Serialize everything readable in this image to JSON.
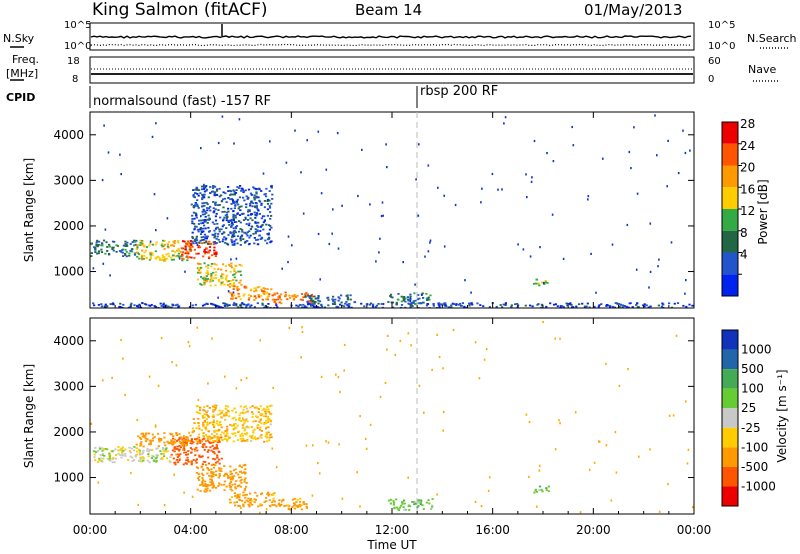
{
  "header": {
    "station": "King Salmon (fitACF)",
    "beam": "Beam 14",
    "date": "01/May/2013"
  },
  "noise_panel": {
    "left_label": "N.Sky",
    "right_label": "N.Search",
    "ticks_left": [
      "10^5",
      "10^0"
    ],
    "ticks_right": [
      "10^5",
      "10^0"
    ]
  },
  "freq_panel": {
    "left_label_1": "Freq.",
    "left_label_2": "[MHz]",
    "ticks_left": [
      "18",
      "8"
    ],
    "right_label": "Nave",
    "ticks_right": [
      "60",
      "0"
    ]
  },
  "cpid": {
    "label": "CPID",
    "segments": [
      {
        "text": "normalsound (fast)  -157 RF",
        "start_hour": 0
      },
      {
        "text": "rbsp 200 RF",
        "start_hour": 13.1
      }
    ]
  },
  "colors": {
    "power_scale": [
      "#0022ee",
      "#2255cc",
      "#226644",
      "#33aa44",
      "#ffcc00",
      "#ff9900",
      "#ff5500",
      "#ee0000"
    ],
    "velocity_scale": [
      "#1133bb",
      "#2266aa",
      "#44aa55",
      "#66cc33",
      "#c8c8c8",
      "#ffcc00",
      "#ff9900",
      "#ff5500",
      "#ee0000"
    ]
  },
  "chart_data": [
    {
      "type": "heatmap",
      "name": "power",
      "xlabel": "",
      "ylabel": "Slant Range [km]",
      "xlim": [
        0,
        24
      ],
      "ylim": [
        200,
        4500
      ],
      "y_ticks": [
        "1000",
        "2000",
        "3000",
        "4000"
      ],
      "colorbar_label": "Power [dB]",
      "colorbar_ticks": [
        "28",
        "24",
        "20",
        "16",
        "12",
        "8",
        "4"
      ],
      "echo_regions": [
        {
          "hours": [
            0.0,
            1.8
          ],
          "range_km": [
            1350,
            1700
          ],
          "power_db": 10
        },
        {
          "hours": [
            1.8,
            4.0
          ],
          "range_km": [
            1250,
            1700
          ],
          "power_db": 18
        },
        {
          "hours": [
            3.6,
            5.0
          ],
          "range_km": [
            1300,
            1700
          ],
          "power_db": 28
        },
        {
          "hours": [
            4.0,
            7.2
          ],
          "range_km": [
            1600,
            2900
          ],
          "power_db": 6
        },
        {
          "hours": [
            4.2,
            6.0
          ],
          "range_km": [
            700,
            1200
          ],
          "power_db": 18
        },
        {
          "hours": [
            5.5,
            7.3
          ],
          "range_km": [
            380,
            700
          ],
          "power_db": 22
        },
        {
          "hours": [
            7.2,
            8.8
          ],
          "range_km": [
            320,
            560
          ],
          "power_db": 24
        },
        {
          "hours": [
            8.5,
            10.5
          ],
          "range_km": [
            250,
            500
          ],
          "power_db": 8
        },
        {
          "hours": [
            11.8,
            13.6
          ],
          "range_km": [
            300,
            550
          ],
          "power_db": 10
        },
        {
          "hours": [
            17.6,
            18.2
          ],
          "range_km": [
            680,
            850
          ],
          "power_db": 16
        },
        {
          "hours": [
            0.0,
            24.0
          ],
          "range_km": [
            220,
            330
          ],
          "power_db": 5
        }
      ]
    },
    {
      "type": "heatmap",
      "name": "velocity",
      "xlabel": "Time UT",
      "ylabel": "Slant Range [km]",
      "xlim": [
        0,
        24
      ],
      "ylim": [
        200,
        4500
      ],
      "x_ticks": [
        "00:00",
        "04:00",
        "08:00",
        "12:00",
        "16:00",
        "20:00",
        "00:00"
      ],
      "y_ticks": [
        "1000",
        "2000",
        "3000",
        "4000"
      ],
      "colorbar_label": "Velocity [m s⁻¹]",
      "colorbar_ticks": [
        "1000",
        "500",
        "100",
        "25",
        "-25",
        "-100",
        "-500",
        "-1000"
      ],
      "echo_regions": [
        {
          "hours": [
            0.0,
            3.2
          ],
          "range_km": [
            1350,
            1700
          ],
          "velocity_ms": 0
        },
        {
          "hours": [
            3.2,
            5.2
          ],
          "range_km": [
            1300,
            1900
          ],
          "velocity_ms": -600
        },
        {
          "hours": [
            1.8,
            4.0
          ],
          "range_km": [
            1700,
            2000
          ],
          "velocity_ms": -400
        },
        {
          "hours": [
            4.0,
            7.2
          ],
          "range_km": [
            1800,
            2600
          ],
          "velocity_ms": -80
        },
        {
          "hours": [
            4.2,
            6.2
          ],
          "range_km": [
            700,
            1300
          ],
          "velocity_ms": -300
        },
        {
          "hours": [
            5.5,
            7.3
          ],
          "range_km": [
            380,
            700
          ],
          "velocity_ms": -150
        },
        {
          "hours": [
            7.2,
            8.6
          ],
          "range_km": [
            320,
            560
          ],
          "velocity_ms": -150
        },
        {
          "hours": [
            11.8,
            13.6
          ],
          "range_km": [
            300,
            550
          ],
          "velocity_ms": 60
        },
        {
          "hours": [
            17.6,
            18.2
          ],
          "range_km": [
            680,
            850
          ],
          "velocity_ms": 60
        }
      ]
    }
  ]
}
